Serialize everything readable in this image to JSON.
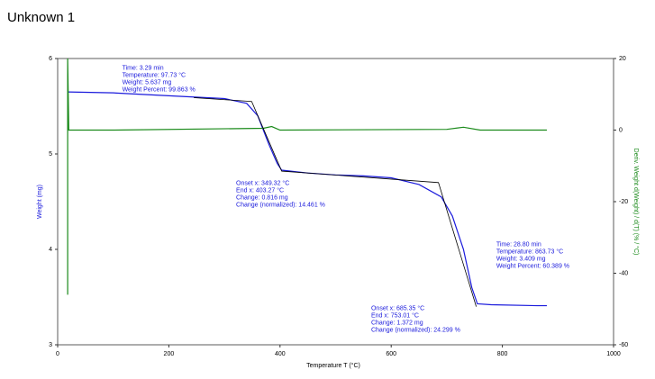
{
  "chart_data": {
    "type": "line",
    "title": "Unknown 1",
    "x_label": "Temperature T (°C)",
    "y_label": "Weight (mg)",
    "y2_label": "Deriv. Weight d(Weight) / d(T) (% / °C)",
    "xlim": [
      0,
      1000
    ],
    "xticks": [
      0,
      200,
      400,
      600,
      800,
      1000
    ],
    "ylim": [
      3,
      6
    ],
    "yticks": [
      3,
      4,
      5,
      6
    ],
    "y2lim": [
      -60,
      20
    ],
    "y2ticks": [
      20,
      0,
      -20,
      -40,
      -60
    ],
    "series": [
      {
        "color": "#1a1adc",
        "x": [
          18,
          100,
          200,
          300,
          340,
          360,
          380,
          395,
          403,
          450,
          500,
          550,
          600,
          650,
          690,
          710,
          730,
          745,
          755,
          780,
          863,
          880
        ],
        "values": [
          5.65,
          5.64,
          5.61,
          5.58,
          5.53,
          5.4,
          5.1,
          4.9,
          4.83,
          4.8,
          4.78,
          4.77,
          4.75,
          4.68,
          4.55,
          4.35,
          4.0,
          3.6,
          3.43,
          3.42,
          3.41,
          3.41
        ]
      },
      {
        "color": "#1a8a1a",
        "axis": "y2",
        "x": [
          18,
          18,
          20,
          100,
          370,
          385,
          400,
          700,
          730,
          760,
          880
        ],
        "values": [
          -46,
          20,
          0,
          0,
          0.5,
          1,
          0,
          0.2,
          0.8,
          0,
          0
        ]
      },
      {
        "color": "#000000",
        "x": [
          245,
          349,
          403,
          685,
          753
        ],
        "values": [
          5.59,
          5.55,
          4.82,
          4.7,
          3.4
        ]
      }
    ],
    "annotations": [
      {
        "x": 116,
        "y": 5.9,
        "lines": [
          "Time: 3.29 min",
          "Temperature: 97.73 °C",
          "Weight: 5.637 mg",
          "Weight Percent: 99.863 %"
        ]
      },
      {
        "x": 321,
        "y": 4.69,
        "lines": [
          "Onset x: 349.32 °C",
          "End x: 403.27 °C",
          "Change: 0.816 mg",
          "Change (normalized): 14.461 %"
        ]
      },
      {
        "x": 564,
        "y": 3.38,
        "lines": [
          "Onset x: 685.35 °C",
          "End x: 753.01 °C",
          "Change: 1.372 mg",
          "Change (normalized): 24.299 %"
        ]
      },
      {
        "x": 789,
        "y": 4.05,
        "lines": [
          "Time: 28.80 min",
          "Temperature: 863.73 °C",
          "Weight: 3.409 mg",
          "Weight Percent: 60.389 %"
        ]
      }
    ]
  }
}
